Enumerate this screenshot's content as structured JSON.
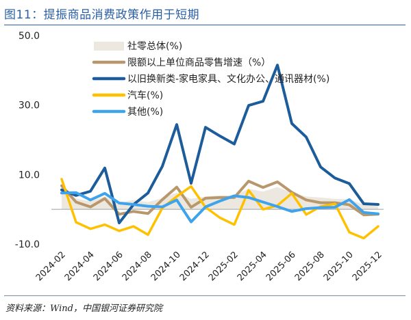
{
  "header": {
    "title": "图11：提振商品消费政策作用于短期"
  },
  "footer": {
    "source": "资料来源：Wind，中国银河证券研究院"
  },
  "chart_data": {
    "type": "line",
    "categories": [
      "2024-02",
      "2024-03",
      "2024-04",
      "2024-05",
      "2024-06",
      "2024-07",
      "2024-08",
      "2024-09",
      "2024-10",
      "2024-11",
      "2024-12",
      "2025-01",
      "2025-02",
      "2025-03",
      "2025-04",
      "2025-05",
      "2025-06",
      "2025-07",
      "2025-08",
      "2025-09",
      "2025-10",
      "2025-11",
      "2025-12"
    ],
    "xtick_labels": [
      "2024-02",
      "2024-04",
      "2024-06",
      "2024-08",
      "2024-10",
      "2024-12",
      "2025-02",
      "2025-04",
      "2025-06",
      "2025-08",
      "2025-10",
      "2025-12"
    ],
    "ylim": [
      -10,
      50
    ],
    "yticks": [
      {
        "value": 50,
        "label": "50.0"
      },
      {
        "value": 30,
        "label": "30.0"
      },
      {
        "value": 10,
        "label": "10.0"
      },
      {
        "value": -10,
        "label": "-10.0"
      }
    ],
    "area": {
      "name": "社零总体(%)",
      "color": "#ece8df",
      "values": [
        5.5,
        3.1,
        2.3,
        3.7,
        2.0,
        2.7,
        2.1,
        3.2,
        4.8,
        3.0,
        3.7,
        4.0,
        4.0,
        5.9,
        5.1,
        6.4,
        4.8,
        3.7,
        3.4,
        3.0,
        2.9,
        1.3,
        0.9
      ]
    },
    "series": [
      {
        "name": "限额以上单位商品零售增速（%）",
        "color": "#b8976c",
        "width": 4,
        "values": [
          6.8,
          2.1,
          0.7,
          3.1,
          -1.4,
          -0.6,
          -1.2,
          2.8,
          6.4,
          0.6,
          3.2,
          3.4,
          3.4,
          8.1,
          6.3,
          7.9,
          4.9,
          2.7,
          1.9,
          1.9,
          1.3,
          -1.6,
          -1.4
        ]
      },
      {
        "name": "以旧换新类-家电家具、文化办公、通讯器材(%)",
        "color": "#1d5c9b",
        "width": 4,
        "values": [
          5.6,
          4.0,
          5.2,
          11.9,
          -3.9,
          1.4,
          4.7,
          12.4,
          24.4,
          7.5,
          23.6,
          21.1,
          18.8,
          29.9,
          31.1,
          41.5,
          24.7,
          20.8,
          12.2,
          9.0,
          7.4,
          1.6,
          1.4
        ]
      },
      {
        "name": "汽车(%)",
        "color": "#ffc000",
        "width": 3.5,
        "values": [
          8.7,
          -3.7,
          -5.6,
          -4.4,
          -6.2,
          -4.9,
          -7.3,
          0.4,
          3.7,
          6.6,
          0.6,
          -2.4,
          -4.4,
          5.5,
          0.0,
          1.1,
          4.6,
          -1.5,
          0.8,
          1.6,
          -6.6,
          -8.3,
          -4.9
        ]
      },
      {
        "name": "其他(%)",
        "color": "#3fa3ec",
        "width": 4,
        "values": [
          4.7,
          4.8,
          2.7,
          4.6,
          1.8,
          1.4,
          0.9,
          0.7,
          2.7,
          -3.6,
          0.7,
          2.4,
          3.9,
          3.4,
          2.1,
          0.8,
          -0.6,
          0.2,
          0.5,
          0.6,
          2.8,
          -0.9,
          -1.3
        ]
      }
    ]
  }
}
